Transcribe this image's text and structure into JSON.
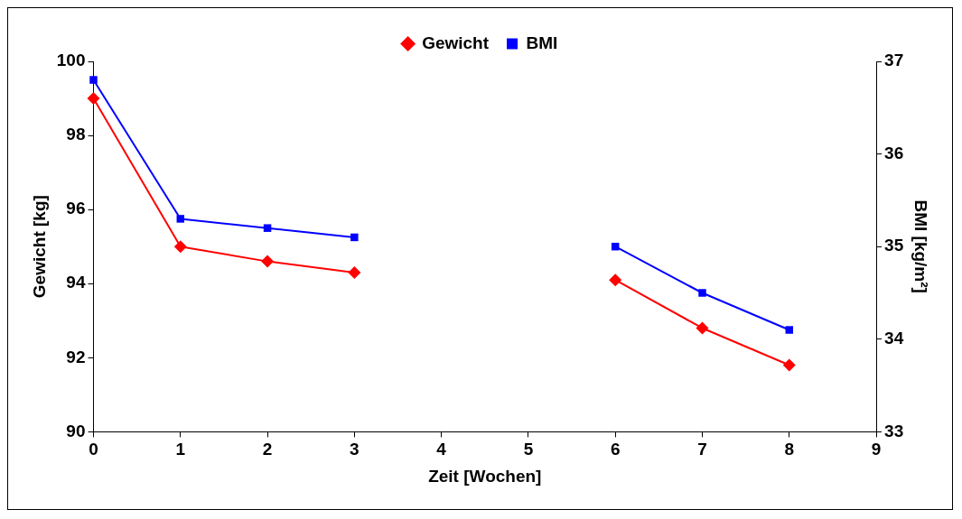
{
  "chart_data": {
    "type": "line",
    "xlabel": "Zeit [Wochen]",
    "ylabel": "Gewicht [kg]",
    "y2label": "BMI [kg/m²]",
    "x": [
      0,
      1,
      2,
      3,
      4,
      5,
      6,
      7,
      8
    ],
    "xlim": [
      0,
      9
    ],
    "xticks": [
      0,
      1,
      2,
      3,
      4,
      5,
      6,
      7,
      8,
      9
    ],
    "ylim": [
      90,
      100
    ],
    "yticks": [
      90,
      92,
      94,
      96,
      98,
      100
    ],
    "y2lim": [
      33,
      37
    ],
    "y2ticks": [
      33,
      34,
      35,
      36,
      37
    ],
    "grid": false,
    "legend": "top",
    "line_style": "solid",
    "series": [
      {
        "name": "Gewicht",
        "color": "#ff0000",
        "marker": "diamond",
        "values": [
          99.0,
          95.0,
          94.6,
          94.3,
          null,
          null,
          94.1,
          92.8,
          91.8
        ]
      },
      {
        "name": "BMI",
        "color": "#0000ff",
        "marker": "square",
        "axis": "y2",
        "values": [
          36.8,
          35.3,
          35.2,
          35.1,
          null,
          null,
          35.0,
          34.5,
          34.1
        ]
      }
    ]
  }
}
